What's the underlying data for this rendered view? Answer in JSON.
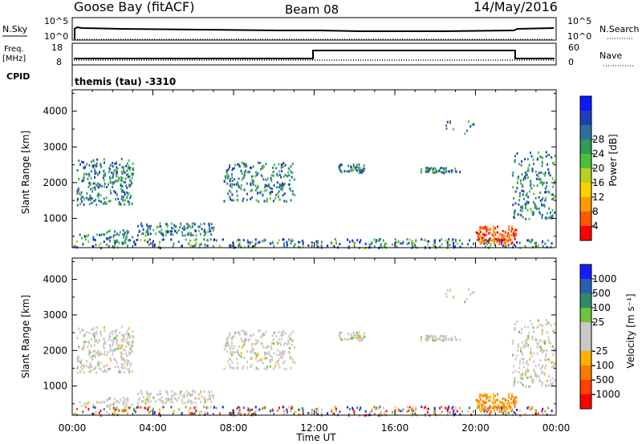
{
  "header": {
    "station": "Goose Bay (fitACF)",
    "beam": "Beam 08",
    "date": "14/May/2016"
  },
  "top_panels": {
    "nsky_label": "N.Sky",
    "nsearch_label": "N.Search",
    "nsky_ticks": [
      "10^5",
      "10^0"
    ],
    "nsearch_ticks": [
      "10^5",
      "10^0"
    ],
    "freq_label_1": "Freq.",
    "freq_label_2": "[MHz]",
    "freq_ticks": [
      "18",
      "8"
    ],
    "nave_label": "Nave",
    "nave_ticks": [
      "60",
      "0"
    ],
    "cpid_label": "CPID",
    "cpid_text": "themis (tau)  -3310"
  },
  "chart_data": [
    {
      "type": "heatmap",
      "panel": "power",
      "ylabel": "Slant Range [km]",
      "yticks": [
        1000,
        2000,
        3000,
        4000
      ],
      "ylim": [
        180,
        4600
      ],
      "xlim_hours": [
        0,
        24
      ],
      "colorbar": {
        "label": "Power [dB]",
        "ticks": [
          "4",
          "8",
          "12",
          "16",
          "20",
          "24",
          "28"
        ],
        "colors": [
          "#0a1aff",
          "#1f3fb8",
          "#2e6e9a",
          "#2f9a5b",
          "#4fbf3a",
          "#b8d020",
          "#ffd000",
          "#ff9a00",
          "#ff5a00",
          "#ff0000"
        ]
      }
    },
    {
      "type": "heatmap",
      "panel": "velocity",
      "ylabel": "Slant Range [km]",
      "yticks": [
        1000,
        2000,
        3000,
        4000
      ],
      "ylim": [
        180,
        4600
      ],
      "xlim_hours": [
        0,
        24
      ],
      "xticks": [
        "00:00",
        "04:00",
        "08:00",
        "12:00",
        "16:00",
        "20:00",
        "00:00"
      ],
      "xlabel": "Time UT",
      "colorbar": {
        "label": "Velocity [m s⁻¹]",
        "ticks": [
          "1000",
          "500",
          "100",
          "25",
          "-25",
          "-100",
          "-500",
          "-1000"
        ],
        "colors": [
          "#1a1aff",
          "#2a5fb0",
          "#2e8a6a",
          "#6cc43a",
          "#c8c8c8",
          "#c8c8c8",
          "#ffb000",
          "#ff7a00",
          "#ff4000",
          "#ff0000"
        ]
      }
    }
  ]
}
